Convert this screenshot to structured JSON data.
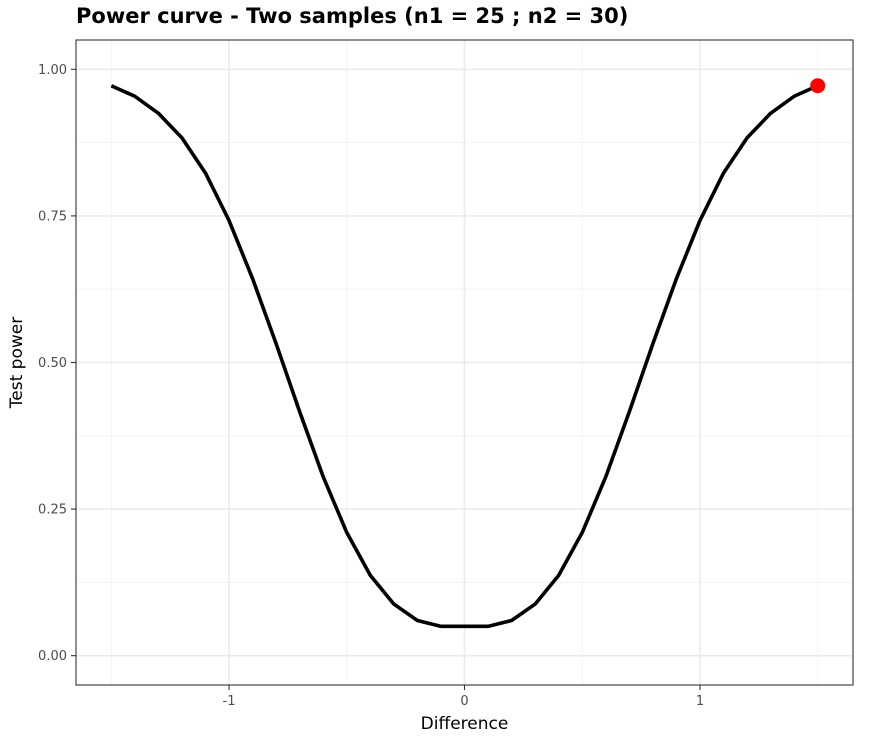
{
  "chart_data": {
    "type": "line",
    "title": "Power curve - Two samples (n1 =  25 ; n2 =  30)",
    "xlabel": "Difference",
    "ylabel": "Test power",
    "xlim": [
      -1.65,
      1.65
    ],
    "ylim": [
      -0.05,
      1.05
    ],
    "x_ticks": [
      -1,
      0,
      1
    ],
    "x_tick_labels": [
      "-1",
      "0",
      "1"
    ],
    "x_minor_ticks": [
      -1.5,
      -0.5,
      0.5,
      1.5
    ],
    "y_ticks": [
      0,
      0.25,
      0.5,
      0.75,
      1.0
    ],
    "y_tick_labels": [
      "0.00",
      "0.25",
      "0.50",
      "0.75",
      "1.00"
    ],
    "y_minor_ticks": [
      0.125,
      0.375,
      0.625,
      0.875
    ],
    "grid": true,
    "series": [
      {
        "color": "#000000",
        "x": [
          -1.5,
          -1.4,
          -1.3,
          -1.2,
          -1.1,
          -1.0,
          -0.9,
          -0.8,
          -0.7,
          -0.6,
          -0.5,
          -0.4,
          -0.3,
          -0.2,
          -0.1,
          0.0,
          0.1,
          0.2,
          0.3,
          0.4,
          0.5,
          0.6,
          0.7,
          0.8,
          0.9,
          1.0,
          1.1,
          1.2,
          1.3,
          1.4,
          1.5
        ],
        "y": [
          0.972,
          0.954,
          0.925,
          0.883,
          0.823,
          0.742,
          0.643,
          0.532,
          0.416,
          0.305,
          0.21,
          0.137,
          0.088,
          0.06,
          0.05,
          0.05,
          0.05,
          0.06,
          0.088,
          0.137,
          0.21,
          0.305,
          0.416,
          0.532,
          0.643,
          0.742,
          0.823,
          0.883,
          0.925,
          0.954,
          0.972
        ]
      }
    ],
    "highlight_point": {
      "x": 1.5,
      "y": 0.972,
      "color": "#ff0000"
    }
  }
}
